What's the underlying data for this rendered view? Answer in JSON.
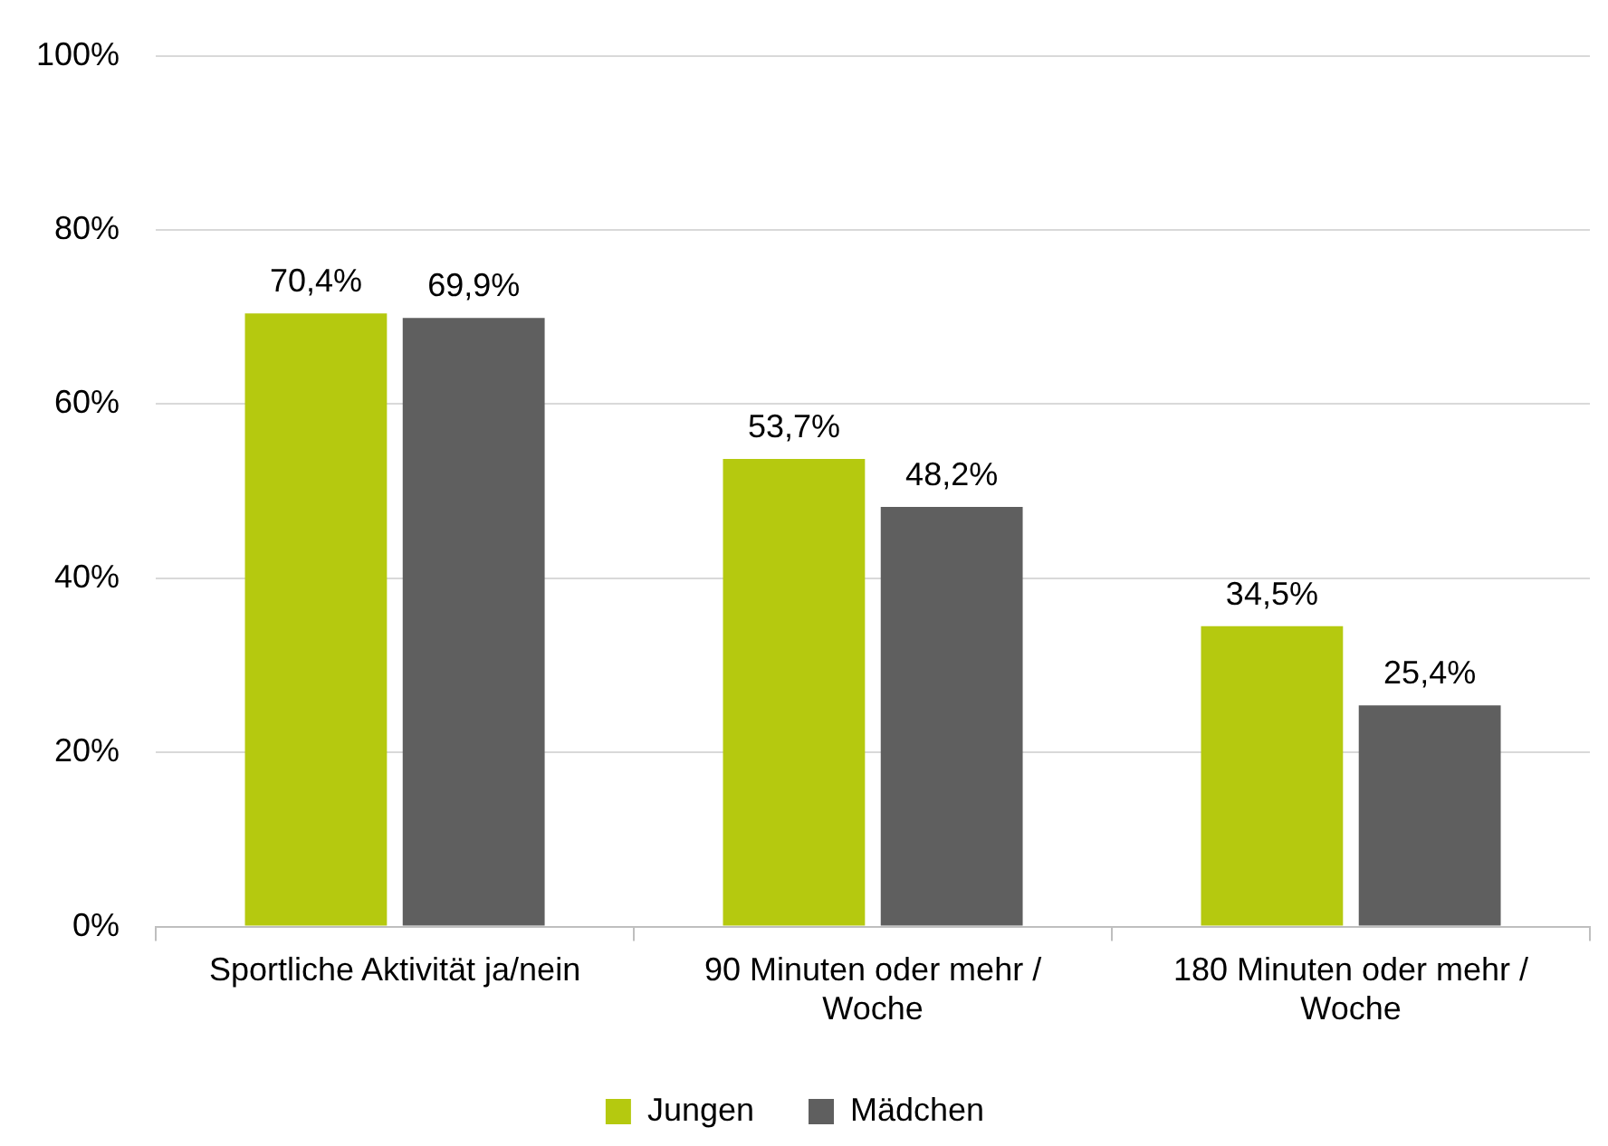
{
  "chart_data": {
    "type": "bar",
    "categories": [
      "Sportliche Aktivität ja/nein",
      "90 Minuten oder mehr / Woche",
      "180 Minuten oder mehr / Woche"
    ],
    "series": [
      {
        "name": "Jungen",
        "color": "#b5c90f",
        "values": [
          70.4,
          53.7,
          34.5
        ],
        "value_labels": [
          "70,4%",
          "53,7%",
          "34,5%"
        ]
      },
      {
        "name": "Mädchen",
        "color": "#5f5f5f",
        "values": [
          69.9,
          48.2,
          25.4
        ],
        "value_labels": [
          "69,9%",
          "48,2%",
          "25,4%"
        ]
      }
    ],
    "ylim": [
      0,
      100
    ],
    "yticks": [
      {
        "value": 0,
        "label": "0%"
      },
      {
        "value": 20,
        "label": "20%"
      },
      {
        "value": 40,
        "label": "40%"
      },
      {
        "value": 60,
        "label": "60%"
      },
      {
        "value": 80,
        "label": "80%"
      },
      {
        "value": 100,
        "label": "100%"
      }
    ],
    "grid": "y",
    "legend": "bottom"
  }
}
